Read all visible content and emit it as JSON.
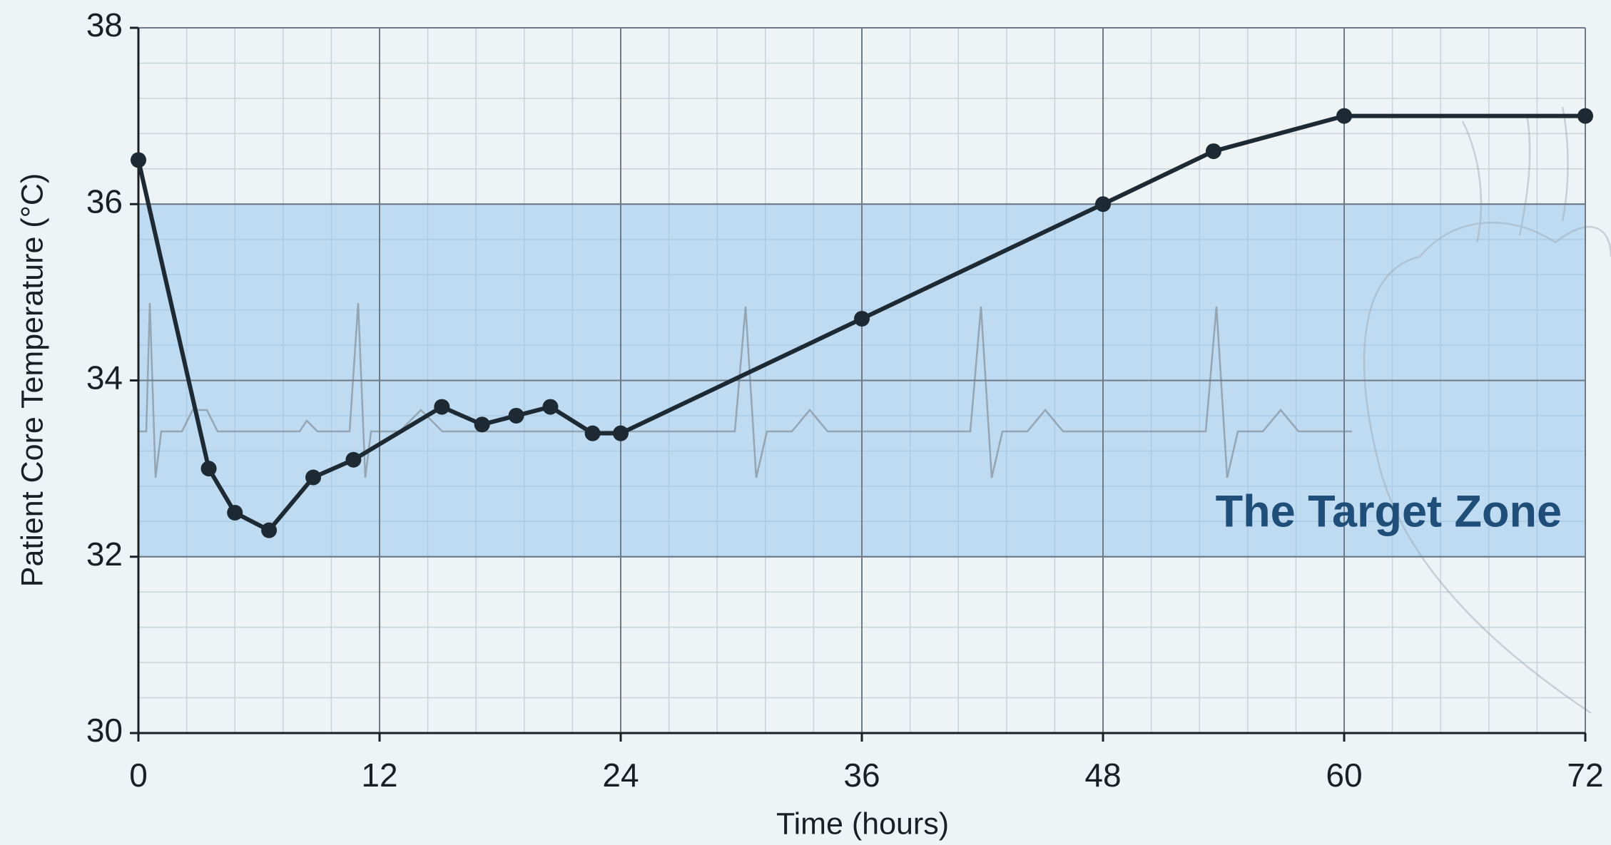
{
  "chart_data": {
    "type": "line",
    "x_label": "Time (hours)",
    "y_label": "Patient Core Temperature (°C)",
    "x": [
      0,
      3.5,
      4.8,
      6.5,
      8.7,
      10.7,
      15.1,
      17.1,
      18.8,
      20.5,
      22.6,
      24,
      36,
      48,
      53.5,
      60,
      72
    ],
    "series": [
      {
        "color": "#1e2a33",
        "values": [
          36.5,
          33.0,
          32.5,
          32.3,
          32.9,
          33.1,
          33.7,
          33.5,
          33.6,
          33.7,
          33.4,
          33.4,
          34.7,
          36.0,
          36.6,
          37.0,
          37.0
        ]
      }
    ],
    "xlim": [
      0,
      72
    ],
    "xticks": [
      0,
      12,
      24,
      36,
      48,
      60,
      72
    ],
    "ylim": [
      30,
      38
    ],
    "yticks": [
      30,
      32,
      34,
      36,
      38
    ],
    "grid": true,
    "target_zone": {
      "range": [
        32,
        36
      ],
      "label": "The Target Zone",
      "color": "#8ec3ee"
    }
  }
}
